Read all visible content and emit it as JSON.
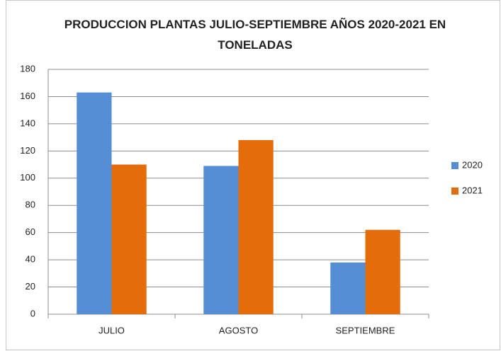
{
  "chart_data": {
    "type": "bar",
    "title": "PRODUCCION PLANTAS JULIO-SEPTIEMBRE AÑOS 2020-2021 EN TONELADAS",
    "categories": [
      "JULIO",
      "AGOSTO",
      "SEPTIEMBRE"
    ],
    "series": [
      {
        "name": "2020",
        "color": "#558ed5",
        "values": [
          163,
          109,
          38
        ]
      },
      {
        "name": "2021",
        "color": "#e46c0a",
        "values": [
          110,
          128,
          62
        ]
      }
    ],
    "ylim": [
      0,
      180
    ],
    "yticks": [
      0,
      20,
      40,
      60,
      80,
      100,
      120,
      140,
      160,
      180
    ],
    "grid": true,
    "legend": "right"
  }
}
